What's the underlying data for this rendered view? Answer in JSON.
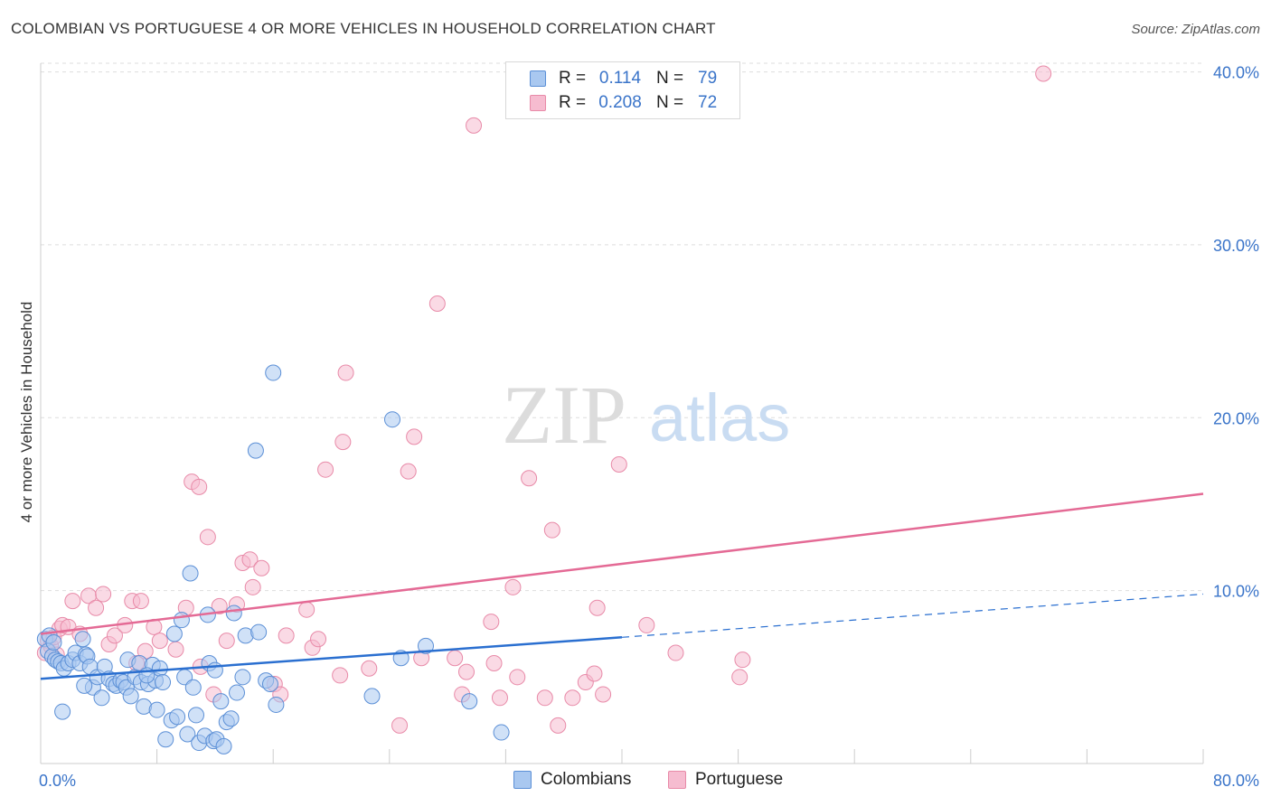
{
  "title": "COLOMBIAN VS PORTUGUESE 4 OR MORE VEHICLES IN HOUSEHOLD CORRELATION CHART",
  "source": "Source: ZipAtlas.com",
  "watermark": {
    "zip": "ZIP",
    "atlas": "atlas"
  },
  "legend": {
    "rows": [
      {
        "r_label": "R =",
        "r_value": "0.114",
        "n_label": "N =",
        "n_value": "79"
      },
      {
        "r_label": "R =",
        "r_value": "0.208",
        "n_label": "N =",
        "n_value": "72"
      }
    ]
  },
  "bottom_legend": {
    "colombians": "Colombians",
    "portuguese": "Portuguese"
  },
  "colors": {
    "blue_fill": "#a9c8f0",
    "blue_stroke": "#5b8fd6",
    "blue_line": "#2a6fd0",
    "pink_fill": "#f6bcd0",
    "pink_stroke": "#e88aa8",
    "pink_line": "#e46a95",
    "tick_label": "#3a74c9",
    "grid": "#dddddd"
  },
  "chart_data": {
    "type": "scatter",
    "title": "COLOMBIAN VS PORTUGUESE 4 OR MORE VEHICLES IN HOUSEHOLD CORRELATION CHART",
    "xlabel": "",
    "ylabel": "4 or more Vehicles in Household",
    "xlim": [
      0,
      80
    ],
    "ylim": [
      0,
      40.5
    ],
    "x_tick_labels": [
      "0.0%",
      "80.0%"
    ],
    "y_ticks": [
      10,
      20,
      30,
      40
    ],
    "y_tick_labels": [
      "10.0%",
      "20.0%",
      "30.0%",
      "40.0%"
    ],
    "grid": true,
    "legend_position": "top-center",
    "series": [
      {
        "name": "Colombians",
        "r": 0.114,
        "n": 79,
        "trend": {
          "x0": 0,
          "y0": 4.9,
          "x1": 40,
          "y1": 7.3,
          "dashed_to_x": 80,
          "dashed_to_y": 9.8
        },
        "points": [
          [
            0.3,
            7.2
          ],
          [
            0.5,
            6.5
          ],
          [
            0.6,
            7.4
          ],
          [
            0.8,
            6.2
          ],
          [
            0.9,
            7.0
          ],
          [
            1.0,
            6.0
          ],
          [
            1.2,
            5.9
          ],
          [
            1.4,
            5.8
          ],
          [
            1.5,
            3.0
          ],
          [
            1.6,
            5.5
          ],
          [
            1.9,
            5.8
          ],
          [
            2.2,
            6.0
          ],
          [
            2.4,
            6.4
          ],
          [
            2.7,
            5.8
          ],
          [
            2.9,
            7.2
          ],
          [
            3.1,
            6.3
          ],
          [
            3.2,
            6.2
          ],
          [
            3.4,
            5.6
          ],
          [
            3.6,
            4.4
          ],
          [
            3.9,
            5.0
          ],
          [
            4.2,
            3.8
          ],
          [
            4.4,
            5.6
          ],
          [
            4.7,
            4.9
          ],
          [
            5.0,
            4.6
          ],
          [
            5.2,
            4.5
          ],
          [
            5.5,
            4.8
          ],
          [
            5.7,
            4.7
          ],
          [
            5.9,
            4.4
          ],
          [
            6.0,
            6.0
          ],
          [
            6.2,
            3.9
          ],
          [
            6.5,
            5.0
          ],
          [
            6.8,
            5.8
          ],
          [
            6.9,
            4.7
          ],
          [
            7.1,
            3.3
          ],
          [
            7.4,
            4.6
          ],
          [
            7.7,
            5.7
          ],
          [
            7.9,
            4.8
          ],
          [
            8.0,
            3.1
          ],
          [
            8.2,
            5.5
          ],
          [
            8.4,
            4.7
          ],
          [
            8.6,
            1.4
          ],
          [
            9.0,
            2.5
          ],
          [
            9.2,
            7.5
          ],
          [
            9.4,
            2.7
          ],
          [
            9.7,
            8.3
          ],
          [
            9.9,
            5.0
          ],
          [
            10.1,
            1.7
          ],
          [
            10.3,
            11.0
          ],
          [
            10.5,
            4.4
          ],
          [
            10.7,
            2.8
          ],
          [
            10.9,
            1.2
          ],
          [
            11.3,
            1.6
          ],
          [
            11.5,
            8.6
          ],
          [
            11.6,
            5.8
          ],
          [
            11.9,
            1.3
          ],
          [
            12.1,
            1.4
          ],
          [
            12.4,
            3.6
          ],
          [
            12.6,
            1.0
          ],
          [
            12.8,
            2.4
          ],
          [
            13.1,
            2.6
          ],
          [
            13.3,
            8.7
          ],
          [
            13.5,
            4.1
          ],
          [
            13.9,
            5.0
          ],
          [
            14.1,
            7.4
          ],
          [
            14.8,
            18.1
          ],
          [
            15.0,
            7.6
          ],
          [
            15.5,
            4.8
          ],
          [
            15.8,
            4.6
          ],
          [
            16.0,
            22.6
          ],
          [
            16.2,
            3.4
          ],
          [
            22.8,
            3.9
          ],
          [
            24.2,
            19.9
          ],
          [
            24.8,
            6.1
          ],
          [
            26.5,
            6.8
          ],
          [
            29.5,
            3.6
          ],
          [
            31.7,
            1.8
          ],
          [
            3.0,
            4.5
          ],
          [
            7.3,
            5.1
          ],
          [
            12.0,
            5.4
          ]
        ]
      },
      {
        "name": "Portuguese",
        "r": 0.208,
        "n": 72,
        "trend": {
          "x0": 0,
          "y0": 7.5,
          "x1": 80,
          "y1": 15.6
        },
        "points": [
          [
            0.3,
            6.4
          ],
          [
            0.5,
            7.1
          ],
          [
            0.7,
            6.8
          ],
          [
            0.9,
            7.3
          ],
          [
            1.1,
            6.3
          ],
          [
            1.3,
            7.8
          ],
          [
            1.5,
            8.0
          ],
          [
            1.9,
            7.9
          ],
          [
            2.2,
            9.4
          ],
          [
            2.7,
            7.5
          ],
          [
            3.3,
            9.7
          ],
          [
            3.8,
            9.0
          ],
          [
            4.3,
            9.8
          ],
          [
            4.7,
            6.9
          ],
          [
            5.1,
            7.4
          ],
          [
            5.8,
            8.0
          ],
          [
            6.3,
            9.4
          ],
          [
            6.6,
            5.8
          ],
          [
            6.9,
            9.4
          ],
          [
            7.2,
            6.5
          ],
          [
            7.8,
            7.9
          ],
          [
            8.2,
            7.1
          ],
          [
            9.3,
            6.6
          ],
          [
            10.0,
            9.0
          ],
          [
            10.4,
            16.3
          ],
          [
            10.9,
            16.0
          ],
          [
            11.0,
            5.6
          ],
          [
            11.5,
            13.1
          ],
          [
            11.9,
            4.0
          ],
          [
            12.3,
            9.1
          ],
          [
            12.8,
            7.1
          ],
          [
            13.5,
            9.2
          ],
          [
            13.9,
            11.6
          ],
          [
            14.4,
            11.8
          ],
          [
            14.6,
            10.2
          ],
          [
            15.2,
            11.3
          ],
          [
            16.1,
            4.6
          ],
          [
            16.5,
            4.0
          ],
          [
            16.9,
            7.4
          ],
          [
            18.3,
            8.9
          ],
          [
            18.7,
            6.7
          ],
          [
            19.1,
            7.2
          ],
          [
            19.6,
            17.0
          ],
          [
            20.6,
            5.1
          ],
          [
            21.0,
            22.6
          ],
          [
            20.8,
            18.6
          ],
          [
            22.6,
            5.5
          ],
          [
            24.7,
            2.2
          ],
          [
            25.3,
            16.9
          ],
          [
            25.7,
            18.9
          ],
          [
            26.2,
            6.1
          ],
          [
            27.3,
            26.6
          ],
          [
            28.5,
            6.1
          ],
          [
            29.0,
            4.0
          ],
          [
            29.3,
            5.3
          ],
          [
            29.8,
            36.9
          ],
          [
            31.0,
            8.2
          ],
          [
            31.2,
            5.8
          ],
          [
            31.6,
            3.8
          ],
          [
            32.5,
            10.2
          ],
          [
            32.8,
            5.0
          ],
          [
            33.6,
            16.5
          ],
          [
            34.7,
            3.8
          ],
          [
            35.2,
            13.5
          ],
          [
            35.6,
            2.2
          ],
          [
            36.6,
            3.8
          ],
          [
            37.5,
            4.7
          ],
          [
            38.1,
            5.2
          ],
          [
            38.3,
            9.0
          ],
          [
            38.7,
            4.0
          ],
          [
            39.8,
            17.3
          ],
          [
            41.7,
            8.0
          ]
        ],
        "extra_points": [
          [
            43.7,
            6.4
          ],
          [
            48.1,
            5.0
          ],
          [
            48.3,
            6.0
          ],
          [
            69.0,
            39.9
          ]
        ]
      }
    ]
  }
}
